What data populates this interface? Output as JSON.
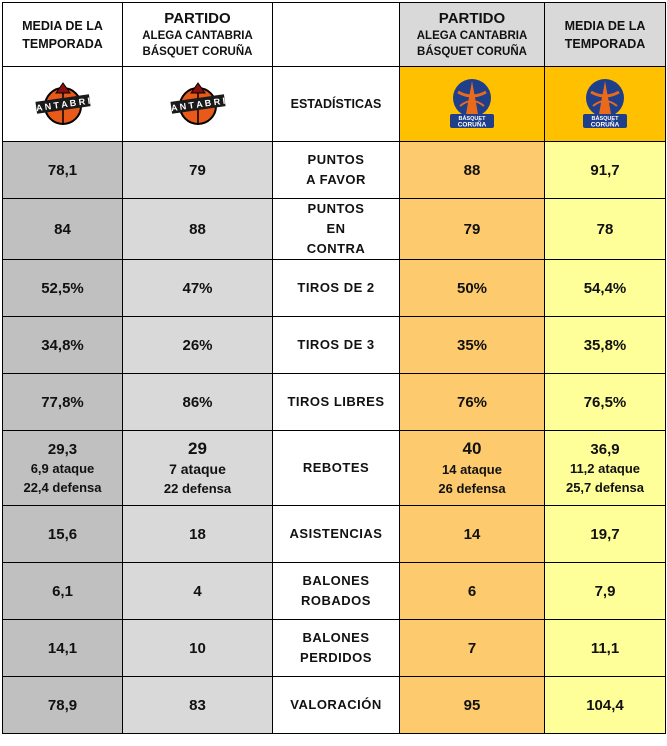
{
  "header": {
    "season_label": "MEDIA DE LA TEMPORADA",
    "season_label_right": "MEDIA DE LA TEMPORADA",
    "partido_label": "PARTIDO",
    "match_teams": "ALEGA CANTABRIA BÁSQUET CORUÑA",
    "stats_label": "ESTADÍSTICAS"
  },
  "logos": {
    "cantabria_text": "CANTABRIA",
    "coruna_text": "BÁSQUET CORUÑA"
  },
  "rows": [
    {
      "label": "PUNTOS A FAVOR",
      "cantabria_season": "78,1",
      "cantabria_match": "79",
      "coruna_match": "88",
      "coruna_season": "91,7"
    },
    {
      "label": "PUNTOS EN CONTRA",
      "cantabria_season": "84",
      "cantabria_match": "88",
      "coruna_match": "79",
      "coruna_season": "78"
    },
    {
      "label": "TIROS DE 2",
      "cantabria_season": "52,5%",
      "cantabria_match": "47%",
      "coruna_match": "50%",
      "coruna_season": "54,4%"
    },
    {
      "label": "TIROS DE 3",
      "cantabria_season": "34,8%",
      "cantabria_match": "26%",
      "coruna_match": "35%",
      "coruna_season": "35,8%"
    },
    {
      "label": "TIROS LIBRES",
      "cantabria_season": "77,8%",
      "cantabria_match": "86%",
      "coruna_match": "76%",
      "coruna_season": "76,5%"
    }
  ],
  "rebotes": {
    "label": "REBOTES",
    "cantabria_season": {
      "total": "29,3",
      "ataque": "6,9 ataque",
      "defensa": "22,4 defensa"
    },
    "cantabria_match": {
      "total": "29",
      "ataque": "7 ataque",
      "defensa": "22 defensa"
    },
    "coruna_match": {
      "total": "40",
      "ataque": "14 ataque",
      "defensa": "26 defensa"
    },
    "coruna_season": {
      "total": "36,9",
      "ataque": "11,2 ataque",
      "defensa": "25,7 defensa"
    }
  },
  "rows2": [
    {
      "label": "ASISTENCIAS",
      "cantabria_season": "15,6",
      "cantabria_match": "18",
      "coruna_match": "14",
      "coruna_season": "19,7"
    },
    {
      "label": "BALONES ROBADOS",
      "cantabria_season": "6,1",
      "cantabria_match": "4",
      "coruna_match": "6",
      "coruna_season": "7,9"
    },
    {
      "label": "BALONES PERDIDOS",
      "cantabria_season": "14,1",
      "cantabria_match": "10",
      "coruna_match": "7",
      "coruna_season": "11,1"
    },
    {
      "label": "VALORACIÓN",
      "cantabria_season": "78,9",
      "cantabria_match": "83",
      "coruna_match": "95",
      "coruna_season": "104,4"
    }
  ],
  "colors": {
    "cantabria_season_bg": "#c0c0c0",
    "cantabria_match_bg": "#d9d9d9",
    "coruna_match_bg": "#fdca6e",
    "coruna_season_bg": "#ffff99",
    "coruna_header_bg": "#ffc000"
  }
}
